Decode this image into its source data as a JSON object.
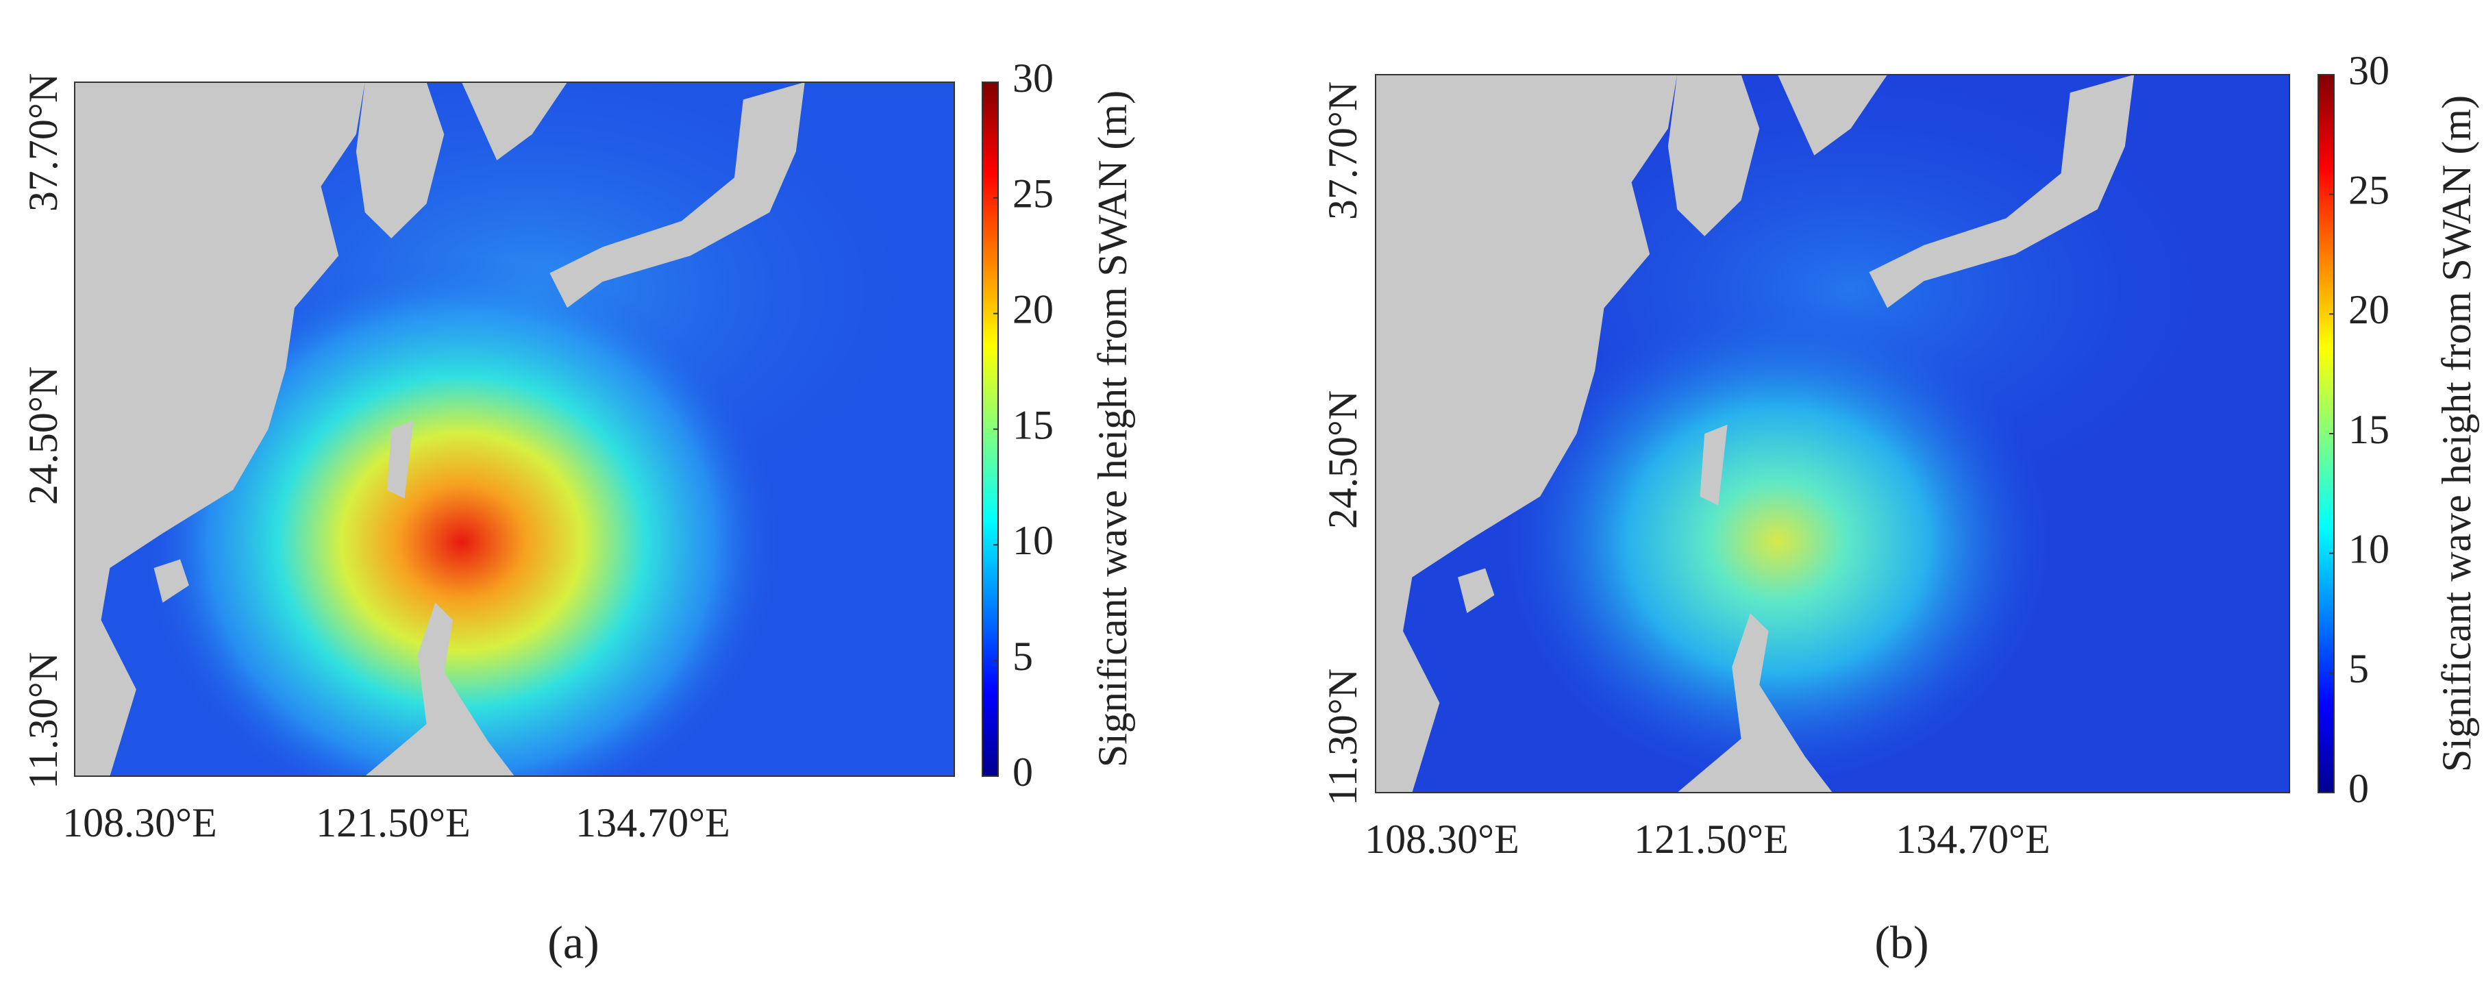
{
  "panels": [
    {
      "caption": "(a)",
      "x_tick_labels": [
        "108.30°E",
        "121.50°E",
        "134.70°E"
      ],
      "y_tick_labels": [
        "11.30°N",
        "24.50°N",
        "37.70°N"
      ],
      "colorbar": {
        "label": "Significant wave height from SWAN (m)",
        "lim": [
          0,
          30
        ],
        "ticks": [
          0,
          5,
          10,
          15,
          20,
          25,
          30
        ]
      }
    },
    {
      "caption": "(b)",
      "x_tick_labels": [
        "108.30°E",
        "121.50°E",
        "134.70°E"
      ],
      "y_tick_labels": [
        "11.30°N",
        "24.50°N",
        "37.70°N"
      ],
      "colorbar": {
        "label": "Significant wave height from SWAN (m)",
        "lim": [
          0,
          30
        ],
        "ticks": [
          0,
          5,
          10,
          15,
          20,
          25,
          30
        ]
      }
    }
  ]
}
